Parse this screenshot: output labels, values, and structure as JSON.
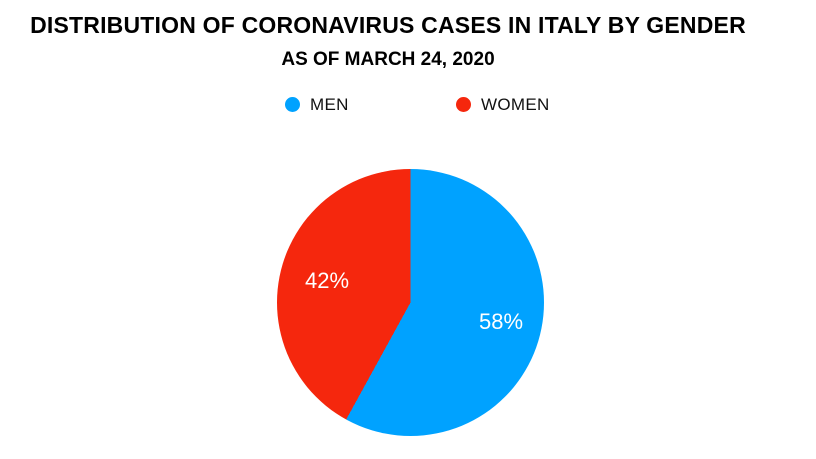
{
  "page": {
    "background_color": "#ffffff"
  },
  "header": {
    "title": "DISTRIBUTION OF CORONAVIRUS CASES IN ITALY BY GENDER",
    "subtitle": "AS OF MARCH 24, 2020"
  },
  "legend": {
    "position": "top",
    "items": [
      {
        "label": "MEN",
        "color": "#00A2FF",
        "swatch": "circle"
      },
      {
        "label": "WOMEN",
        "color": "#F5270D",
        "swatch": "circle"
      }
    ]
  },
  "chart_data": {
    "type": "pie",
    "title": "DISTRIBUTION OF CORONAVIRUS CASES IN ITALY BY GENDER",
    "subtitle": "AS OF MARCH 24, 2020",
    "categories": [
      "MEN",
      "WOMEN"
    ],
    "values": [
      58,
      42
    ],
    "unit": "%",
    "labels": [
      "58%",
      "42%"
    ],
    "colors": [
      "#00A2FF",
      "#F5270D"
    ],
    "label_color": "#ffffff",
    "start_angle_deg": 0,
    "direction": "clockwise",
    "legend_position": "top",
    "grid": false
  }
}
